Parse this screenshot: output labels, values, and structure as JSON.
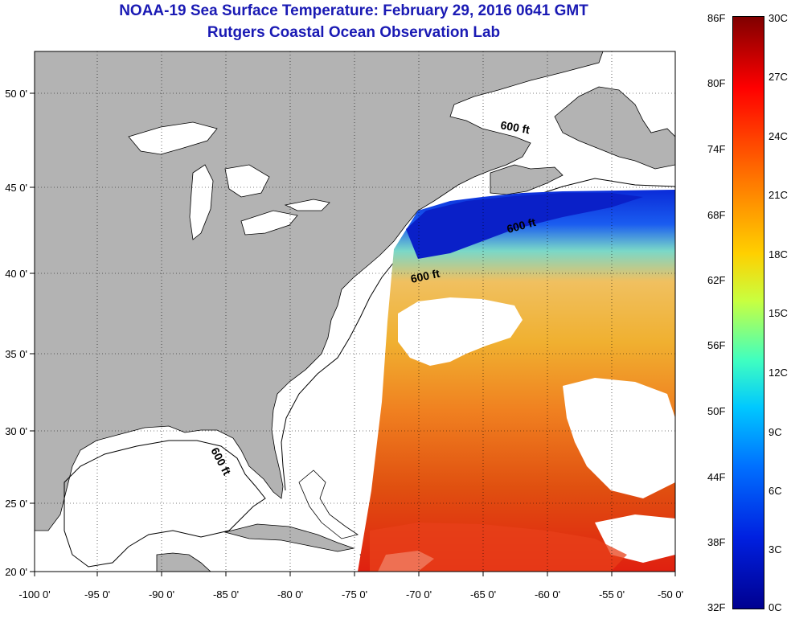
{
  "title": "NOAA-19 Sea Surface Temperature:  February 29, 2016 0641 GMT",
  "subtitle": "Rutgers Coastal Ocean Observation Lab",
  "map": {
    "lon_ticks": [
      "-100 0'",
      "-95 0'",
      "-90 0'",
      "-85 0'",
      "-80 0'",
      "-75 0'",
      "-70 0'",
      "-65 0'",
      "-60 0'",
      "-55 0'",
      "-50 0'"
    ],
    "lat_ticks": [
      "50 0'",
      "45 0'",
      "40 0'",
      "35 0'",
      "30 0'",
      "25 0'",
      "20 0'"
    ],
    "lon_range": [
      -100,
      -50
    ],
    "lat_range": [
      20,
      52.5
    ],
    "contour_label": "600 ft",
    "land_color": "#b3b3b3",
    "ocean_nodata_color": "#ffffff"
  },
  "colorbar": {
    "fahrenheit_labels": [
      "86F",
      "80F",
      "74F",
      "68F",
      "62F",
      "56F",
      "50F",
      "44F",
      "38F",
      "32F"
    ],
    "celsius_labels": [
      "30C",
      "27C",
      "24C",
      "21C",
      "18C",
      "15C",
      "12C",
      "9C",
      "6C",
      "3C",
      "0C"
    ],
    "range_c": [
      0,
      30
    ],
    "range_f": [
      32,
      86
    ]
  }
}
